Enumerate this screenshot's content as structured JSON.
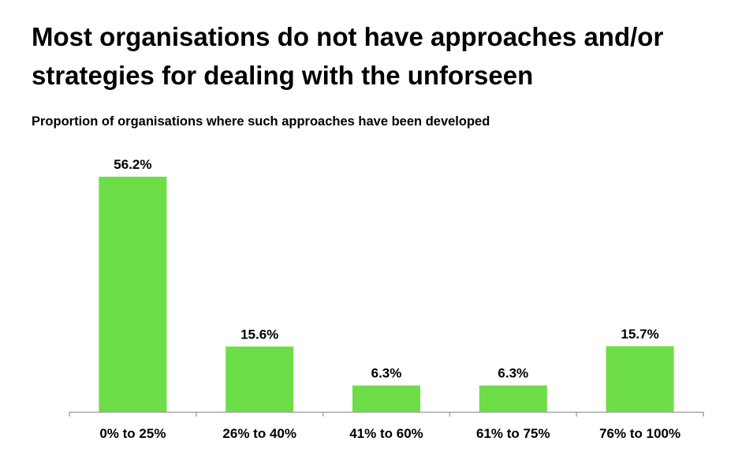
{
  "chart_data": {
    "type": "bar",
    "title": "Most organisations do not have approaches and/or strategies for dealing with the unforseen",
    "subtitle": "Proportion of organisations where such approaches have been developed",
    "categories": [
      "0% to 25%",
      "26% to 40%",
      "41% to 60%",
      "61% to 75%",
      "76% to 100%"
    ],
    "values": [
      56.2,
      15.6,
      6.3,
      6.3,
      15.7
    ],
    "data_labels": [
      "56.2%",
      "15.6%",
      "6.3%",
      "6.3%",
      "15.7%"
    ],
    "ylim": [
      0,
      60
    ],
    "bar_color": "#6ddd48",
    "grid": false,
    "legend": "none"
  }
}
